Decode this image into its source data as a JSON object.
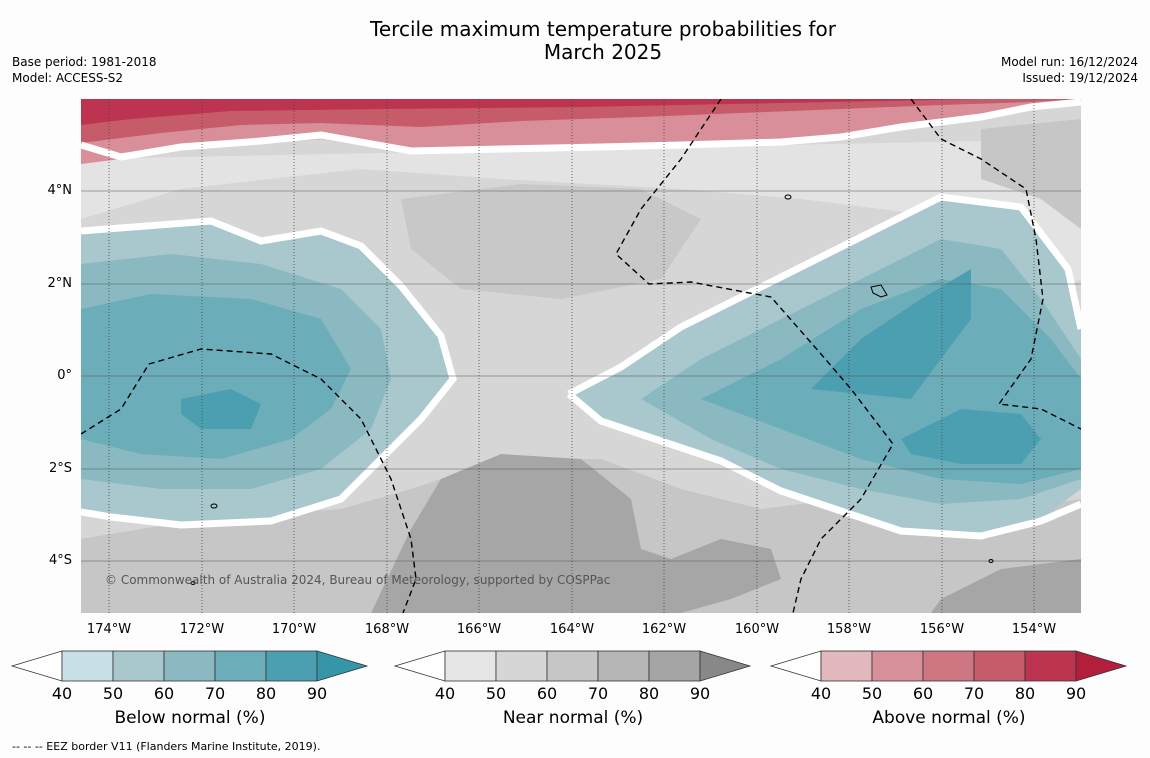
{
  "title_line1": "Tercile maximum temperature probabilities for",
  "title_line2": "March 2025",
  "meta_left": {
    "base_period": "Base period: 1981-2018",
    "model": "Model: ACCESS-S2"
  },
  "meta_right": {
    "model_run": "Model run: 16/12/2024",
    "issued": "Issued: 19/12/2024"
  },
  "map": {
    "copyright": "© Commonwealth of Australia 2024, Bureau of Meteorology, supported by COSPPac",
    "lat_labels": [
      "4°N",
      "2°N",
      "0°",
      "2°S",
      "4°S"
    ],
    "lon_labels": [
      "174°W",
      "172°W",
      "170°W",
      "168°W",
      "166°W",
      "164°W",
      "162°W",
      "160°W",
      "158°W",
      "156°W",
      "154°W"
    ]
  },
  "colorbars": [
    {
      "name": "below",
      "title": "Below normal (%)",
      "ticks": [
        "40",
        "50",
        "60",
        "70",
        "80",
        "90"
      ],
      "colors": [
        "#c8e1e8",
        "#a8c8ce",
        "#8ab9c2",
        "#6badb9",
        "#4c9fb0",
        "#3596aa"
      ]
    },
    {
      "name": "near",
      "title": "Near normal (%)",
      "ticks": [
        "40",
        "50",
        "60",
        "70",
        "80",
        "90"
      ],
      "colors": [
        "#e6e6e6",
        "#d6d6d6",
        "#c6c6c6",
        "#b5b5b5",
        "#a5a5a5",
        "#888888"
      ]
    },
    {
      "name": "above",
      "title": "Above normal (%)",
      "ticks": [
        "40",
        "50",
        "60",
        "70",
        "80",
        "90"
      ],
      "colors": [
        "#e2b8bf",
        "#d78f9a",
        "#ce7682",
        "#c65b69",
        "#bd3450",
        "#b21e3c"
      ]
    }
  ],
  "footnote": "--  --  -- EEZ border V11 (Flanders Marine Institute, 2019)."
}
